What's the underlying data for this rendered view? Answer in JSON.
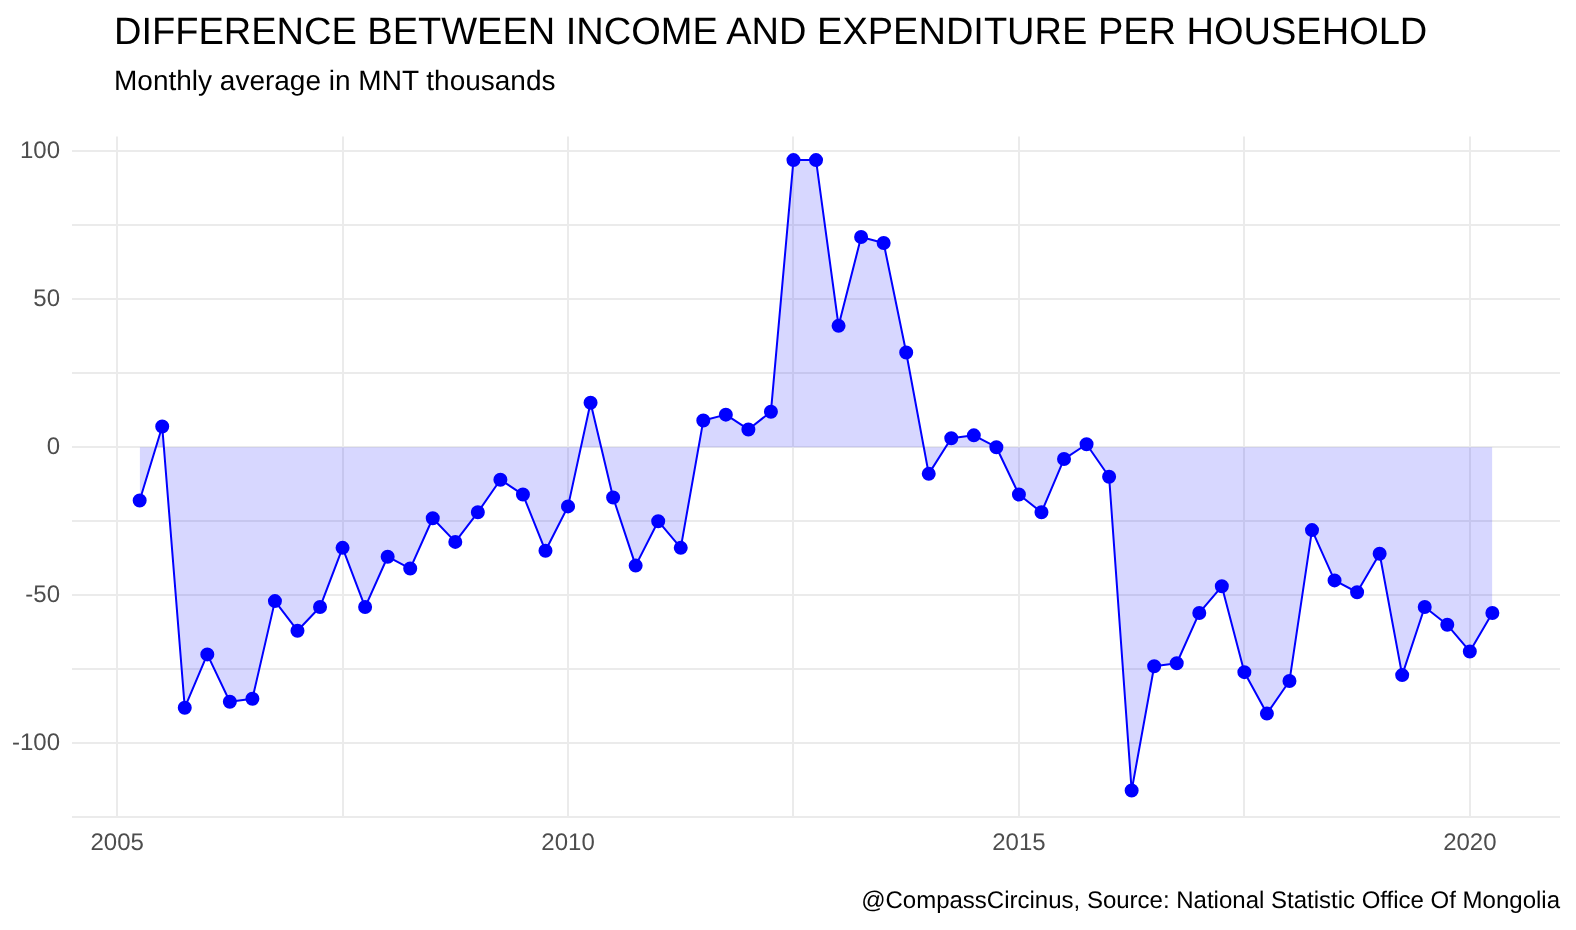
{
  "chart_data": {
    "type": "area",
    "title": "DIFFERENCE BETWEEN INCOME AND EXPENDITURE PER HOUSEHOLD",
    "subtitle": "Monthly average in MNT thousands",
    "annotations": [
      "@CompassCircinus, Source: National Statistic Office Of Mongolia"
    ],
    "x": [
      2005.25,
      2005.5,
      2005.75,
      2006,
      2006.25,
      2006.5,
      2006.75,
      2007,
      2007.25,
      2007.5,
      2007.75,
      2008,
      2008.25,
      2008.5,
      2008.75,
      2009,
      2009.25,
      2009.5,
      2009.75,
      2010,
      2010.25,
      2010.5,
      2010.75,
      2011,
      2011.25,
      2011.5,
      2011.75,
      2012,
      2012.25,
      2012.5,
      2012.75,
      2013,
      2013.25,
      2013.5,
      2013.75,
      2014,
      2014.25,
      2014.5,
      2014.75,
      2015,
      2015.25,
      2015.5,
      2015.75,
      2016,
      2016.25,
      2016.5,
      2016.75,
      2017,
      2017.25,
      2017.5,
      2017.75,
      2018,
      2018.25,
      2018.5,
      2018.75,
      2019,
      2019.25,
      2019.5,
      2019.75,
      2020,
      2020.25
    ],
    "series": [
      {
        "color": "#0000ff",
        "values": [
          -18,
          7,
          -88,
          -70,
          -86,
          -85,
          -52,
          -62,
          -54,
          -34,
          -54,
          -37,
          -41,
          -24,
          -32,
          -22,
          -11,
          -16,
          -35,
          -20,
          15,
          -17,
          -40,
          -25,
          -34,
          9,
          11,
          6,
          12,
          97,
          97,
          41,
          71,
          69,
          32,
          -9,
          3,
          4,
          0,
          -16,
          -22,
          -4,
          1,
          -10,
          -116,
          -74,
          -73,
          -56,
          -47,
          -76,
          -90,
          -79,
          -28,
          -45,
          -49,
          -36,
          -77,
          -54,
          -60,
          -69,
          -56
        ]
      }
    ],
    "xlim": [
      2004.5,
      2021
    ],
    "xticks": [
      {
        "value": 2005,
        "label": "2005"
      },
      {
        "value": 2007.5,
        "label": null
      },
      {
        "value": 2010,
        "label": "2010"
      },
      {
        "value": 2012.5,
        "label": null
      },
      {
        "value": 2015,
        "label": "2015"
      },
      {
        "value": 2017.5,
        "label": null
      },
      {
        "value": 2020,
        "label": "2020"
      }
    ],
    "ylim": [
      -125,
      105
    ],
    "yticks": [
      {
        "value": -125,
        "label": null
      },
      -100,
      {
        "value": -75,
        "label": null
      },
      -50,
      {
        "value": -25,
        "label": null
      },
      0,
      {
        "value": 25,
        "label": null
      },
      50,
      {
        "value": 75,
        "label": null
      },
      100
    ],
    "grid": true,
    "legend": false,
    "marker": "circle",
    "line_style": "solid"
  }
}
